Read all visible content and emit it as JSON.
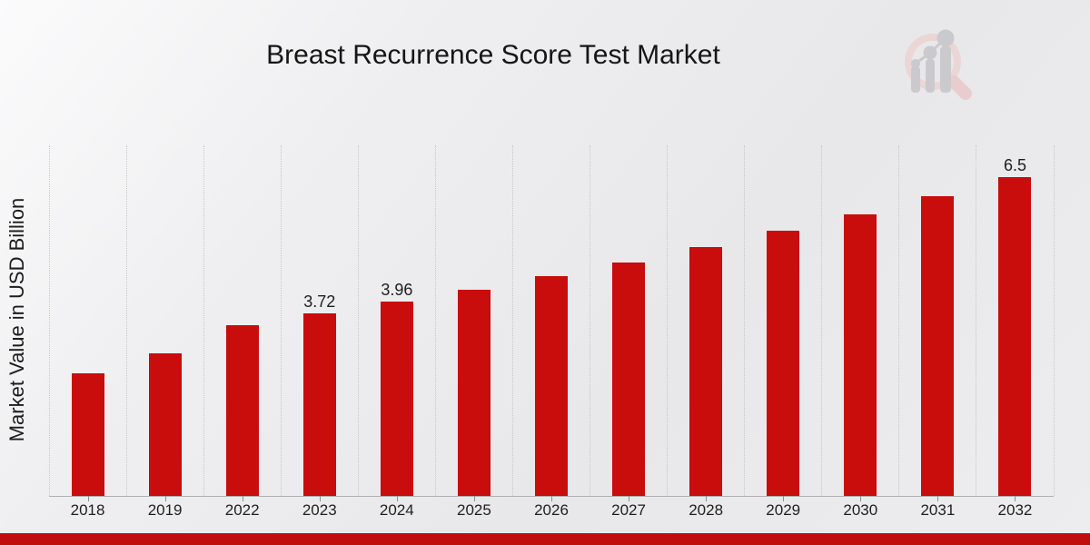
{
  "header": {
    "title": "Breast Recurrence Score Test Market"
  },
  "axes": {
    "y_axis_label": "Market Value in USD Billion"
  },
  "chart_data": {
    "type": "bar",
    "title": "Breast Recurrence Score Test Market",
    "xlabel": "",
    "ylabel": "Market Value in USD Billion",
    "categories": [
      "2018",
      "2019",
      "2022",
      "2023",
      "2024",
      "2025",
      "2026",
      "2027",
      "2028",
      "2029",
      "2030",
      "2031",
      "2032"
    ],
    "values": [
      2.5,
      2.91,
      3.49,
      3.72,
      3.96,
      4.21,
      4.48,
      4.77,
      5.07,
      5.4,
      5.74,
      6.11,
      6.5
    ],
    "data_labels": {
      "2023": "3.72",
      "2024": "3.96",
      "2032": "6.5"
    },
    "ylim": [
      0,
      7.15
    ],
    "grid": "vertical-dotted",
    "legend": "none",
    "units": "USD Billion"
  },
  "colors": {
    "bar": "#c90c0c",
    "ribbon": "#c00d0d",
    "grid": "#c7c7c9",
    "axis_line": "#b0b0b1",
    "text": "#1c1c1c"
  },
  "branding": {
    "logo_name": "market-research-growth-magnifier-logo"
  }
}
